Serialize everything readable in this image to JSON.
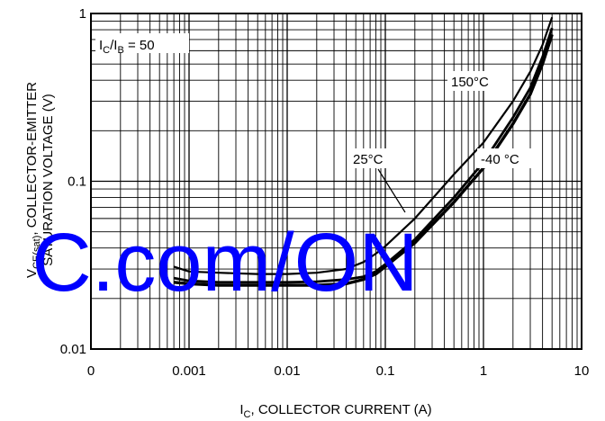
{
  "chart_data": {
    "type": "line",
    "title": "",
    "xscale": "log",
    "yscale": "log",
    "xlim": [
      0.0001,
      10
    ],
    "ylim": [
      0.01,
      1
    ],
    "grid": true,
    "xlabel": {
      "main": "I",
      "sub": "C",
      "rest": ", COLLECTOR CURRENT (A)"
    },
    "ylabel": {
      "line1": "SATURATION VOLTAGE (V)",
      "line2_main": "V",
      "line2_sub": "CE(sat)",
      "line2_rest": ", COLLECTOR-EMITTER"
    },
    "x_ticks": [
      "0",
      "0.001",
      "0.01",
      "0.1",
      "1",
      "10"
    ],
    "y_ticks": [
      "0.01",
      "0.1",
      "1"
    ],
    "condition": {
      "a": "I",
      "a_sub": "C",
      "b": "/I",
      "b_sub": "B",
      "rest": " = 50"
    },
    "series": [
      {
        "name": "150°C",
        "x": [
          0.0007,
          0.001,
          0.002,
          0.005,
          0.01,
          0.02,
          0.04,
          0.06,
          0.08,
          0.1,
          0.2,
          0.5,
          1,
          2,
          3,
          4,
          5
        ],
        "y": [
          0.031,
          0.029,
          0.0285,
          0.028,
          0.028,
          0.0285,
          0.03,
          0.033,
          0.037,
          0.041,
          0.06,
          0.11,
          0.17,
          0.3,
          0.45,
          0.65,
          0.95
        ]
      },
      {
        "name": "25°C",
        "x": [
          0.0007,
          0.001,
          0.002,
          0.005,
          0.01,
          0.02,
          0.04,
          0.06,
          0.08,
          0.1,
          0.2,
          0.5,
          1,
          2,
          3,
          4,
          5
        ],
        "y": [
          0.0265,
          0.0255,
          0.025,
          0.025,
          0.025,
          0.0252,
          0.026,
          0.027,
          0.029,
          0.032,
          0.045,
          0.08,
          0.13,
          0.24,
          0.36,
          0.55,
          0.82
        ]
      },
      {
        "name": "-40 °C",
        "x": [
          0.0007,
          0.001,
          0.002,
          0.005,
          0.01,
          0.02,
          0.04,
          0.06,
          0.08,
          0.1,
          0.2,
          0.5,
          1,
          2,
          3,
          4,
          5
        ],
        "y": [
          0.025,
          0.0245,
          0.024,
          0.024,
          0.024,
          0.024,
          0.0245,
          0.026,
          0.028,
          0.031,
          0.043,
          0.075,
          0.12,
          0.22,
          0.33,
          0.5,
          0.75
        ]
      }
    ],
    "annotations": {
      "t150": "150°C",
      "t25": "25°C",
      "tm40": "-40 °C"
    }
  },
  "watermark": {
    "text": "C.com/ON",
    "color": "#0000ff"
  }
}
